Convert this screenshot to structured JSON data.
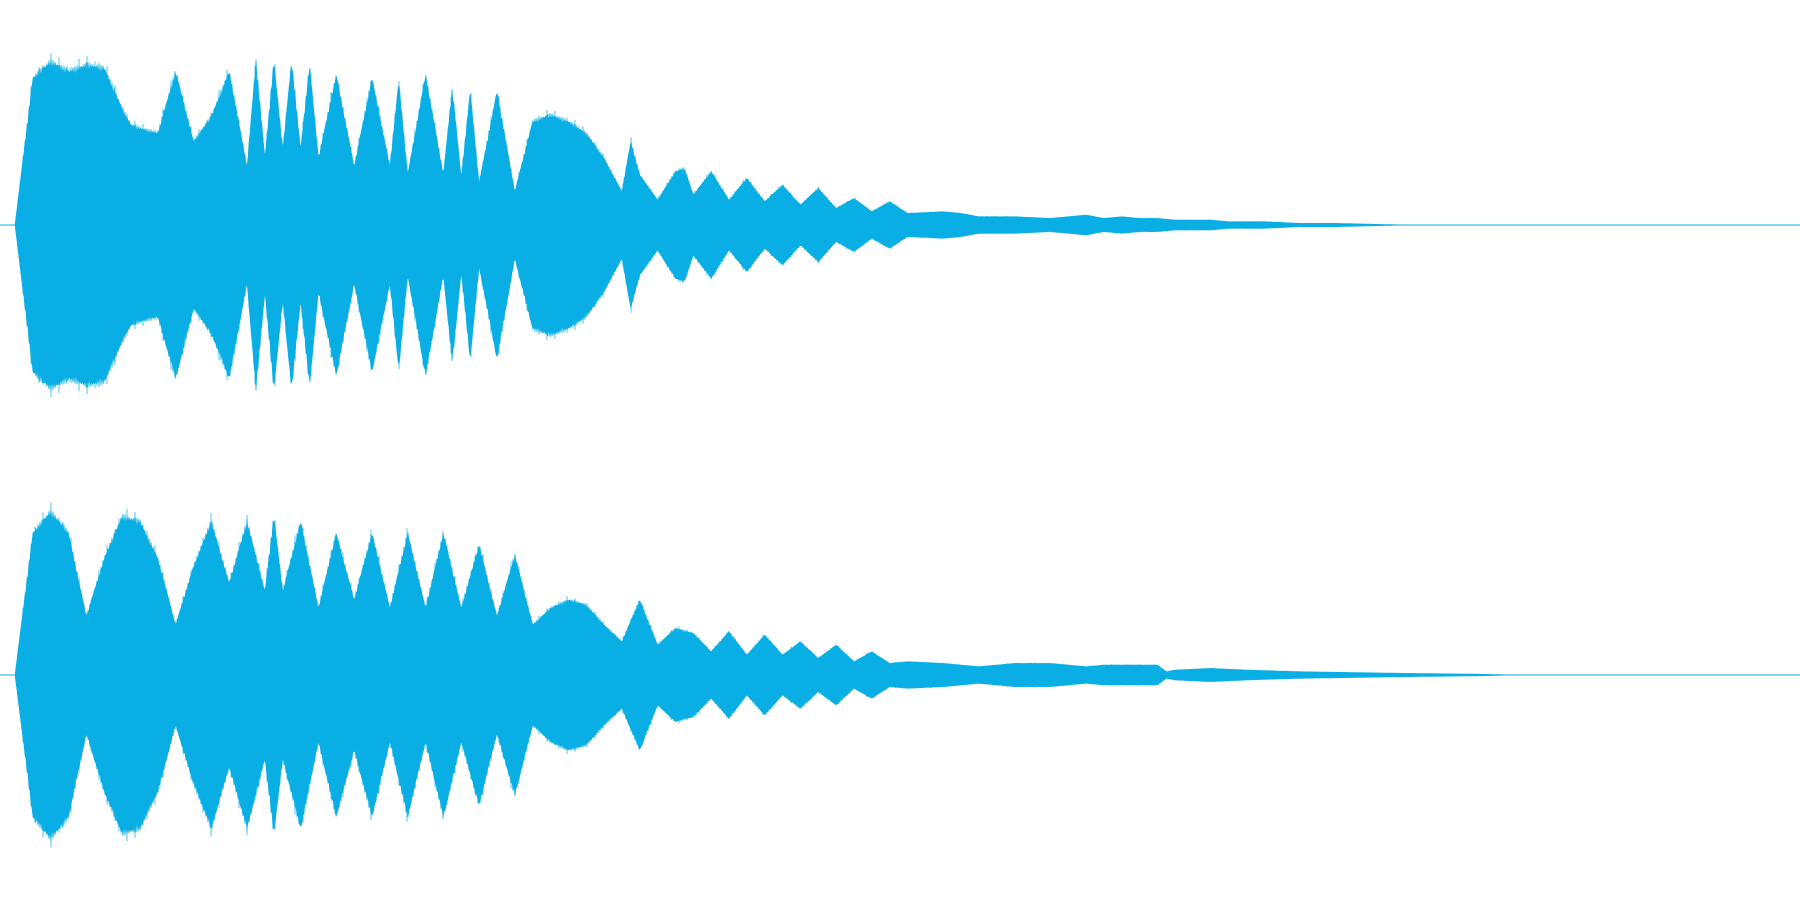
{
  "waveform": {
    "color": "#08aee4",
    "background": "#ffffff",
    "channel_count": 2,
    "channels": [
      {
        "label": "",
        "envelope": [
          [
            0.0,
            0.0
          ],
          [
            0.01,
            0.88
          ],
          [
            0.02,
            0.98
          ],
          [
            0.03,
            0.92
          ],
          [
            0.04,
            0.96
          ],
          [
            0.05,
            0.94
          ],
          [
            0.06,
            0.7
          ],
          [
            0.065,
            0.6
          ],
          [
            0.07,
            0.58
          ],
          [
            0.08,
            0.55
          ],
          [
            0.09,
            0.92
          ],
          [
            0.1,
            0.5
          ],
          [
            0.11,
            0.65
          ],
          [
            0.12,
            0.92
          ],
          [
            0.13,
            0.35
          ],
          [
            0.135,
            0.98
          ],
          [
            0.14,
            0.4
          ],
          [
            0.145,
            0.98
          ],
          [
            0.15,
            0.45
          ],
          [
            0.155,
            0.98
          ],
          [
            0.16,
            0.45
          ],
          [
            0.165,
            0.96
          ],
          [
            0.17,
            0.4
          ],
          [
            0.18,
            0.9
          ],
          [
            0.19,
            0.35
          ],
          [
            0.2,
            0.88
          ],
          [
            0.21,
            0.35
          ],
          [
            0.215,
            0.86
          ],
          [
            0.22,
            0.3
          ],
          [
            0.23,
            0.9
          ],
          [
            0.24,
            0.3
          ],
          [
            0.245,
            0.82
          ],
          [
            0.25,
            0.28
          ],
          [
            0.255,
            0.8
          ],
          [
            0.26,
            0.25
          ],
          [
            0.27,
            0.8
          ],
          [
            0.28,
            0.2
          ],
          [
            0.29,
            0.62
          ],
          [
            0.3,
            0.66
          ],
          [
            0.31,
            0.62
          ],
          [
            0.32,
            0.55
          ],
          [
            0.33,
            0.4
          ],
          [
            0.34,
            0.2
          ],
          [
            0.345,
            0.5
          ],
          [
            0.35,
            0.3
          ],
          [
            0.36,
            0.15
          ],
          [
            0.37,
            0.32
          ],
          [
            0.375,
            0.34
          ],
          [
            0.38,
            0.18
          ],
          [
            0.39,
            0.32
          ],
          [
            0.4,
            0.15
          ],
          [
            0.41,
            0.28
          ],
          [
            0.42,
            0.14
          ],
          [
            0.43,
            0.24
          ],
          [
            0.44,
            0.12
          ],
          [
            0.45,
            0.22
          ],
          [
            0.46,
            0.1
          ],
          [
            0.47,
            0.16
          ],
          [
            0.48,
            0.08
          ],
          [
            0.49,
            0.14
          ],
          [
            0.5,
            0.07
          ],
          [
            0.52,
            0.08
          ],
          [
            0.53,
            0.07
          ],
          [
            0.54,
            0.05
          ],
          [
            0.56,
            0.05
          ],
          [
            0.58,
            0.04
          ],
          [
            0.6,
            0.06
          ],
          [
            0.61,
            0.04
          ],
          [
            0.62,
            0.05
          ],
          [
            0.63,
            0.04
          ],
          [
            0.64,
            0.04
          ],
          [
            0.65,
            0.03
          ],
          [
            0.66,
            0.03
          ],
          [
            0.67,
            0.03
          ],
          [
            0.68,
            0.02
          ],
          [
            0.7,
            0.02
          ],
          [
            0.72,
            0.01
          ],
          [
            0.74,
            0.01
          ],
          [
            0.76,
            0.005
          ],
          [
            0.78,
            0.0
          ],
          [
            1.0,
            0.0
          ]
        ]
      },
      {
        "label": "",
        "envelope": [
          [
            0.0,
            0.0
          ],
          [
            0.01,
            0.85
          ],
          [
            0.02,
            0.98
          ],
          [
            0.03,
            0.85
          ],
          [
            0.04,
            0.35
          ],
          [
            0.05,
            0.7
          ],
          [
            0.06,
            0.95
          ],
          [
            0.07,
            0.92
          ],
          [
            0.08,
            0.7
          ],
          [
            0.09,
            0.3
          ],
          [
            0.1,
            0.65
          ],
          [
            0.11,
            0.92
          ],
          [
            0.12,
            0.55
          ],
          [
            0.13,
            0.92
          ],
          [
            0.14,
            0.5
          ],
          [
            0.145,
            0.95
          ],
          [
            0.15,
            0.5
          ],
          [
            0.16,
            0.92
          ],
          [
            0.17,
            0.4
          ],
          [
            0.18,
            0.85
          ],
          [
            0.19,
            0.45
          ],
          [
            0.2,
            0.85
          ],
          [
            0.21,
            0.4
          ],
          [
            0.22,
            0.85
          ],
          [
            0.23,
            0.4
          ],
          [
            0.24,
            0.85
          ],
          [
            0.25,
            0.4
          ],
          [
            0.26,
            0.78
          ],
          [
            0.27,
            0.35
          ],
          [
            0.28,
            0.72
          ],
          [
            0.29,
            0.3
          ],
          [
            0.3,
            0.4
          ],
          [
            0.31,
            0.45
          ],
          [
            0.32,
            0.42
          ],
          [
            0.33,
            0.3
          ],
          [
            0.34,
            0.2
          ],
          [
            0.35,
            0.45
          ],
          [
            0.36,
            0.18
          ],
          [
            0.37,
            0.28
          ],
          [
            0.38,
            0.25
          ],
          [
            0.39,
            0.14
          ],
          [
            0.4,
            0.26
          ],
          [
            0.41,
            0.12
          ],
          [
            0.42,
            0.24
          ],
          [
            0.43,
            0.12
          ],
          [
            0.44,
            0.2
          ],
          [
            0.45,
            0.1
          ],
          [
            0.46,
            0.18
          ],
          [
            0.47,
            0.08
          ],
          [
            0.48,
            0.14
          ],
          [
            0.49,
            0.07
          ],
          [
            0.5,
            0.08
          ],
          [
            0.52,
            0.07
          ],
          [
            0.53,
            0.06
          ],
          [
            0.54,
            0.05
          ],
          [
            0.55,
            0.06
          ],
          [
            0.56,
            0.07
          ],
          [
            0.58,
            0.07
          ],
          [
            0.59,
            0.06
          ],
          [
            0.6,
            0.05
          ],
          [
            0.61,
            0.06
          ],
          [
            0.62,
            0.06
          ],
          [
            0.63,
            0.06
          ],
          [
            0.64,
            0.06
          ],
          [
            0.645,
            0.02
          ],
          [
            0.65,
            0.03
          ],
          [
            0.67,
            0.04
          ],
          [
            0.69,
            0.03
          ],
          [
            0.72,
            0.02
          ],
          [
            0.75,
            0.015
          ],
          [
            0.78,
            0.01
          ],
          [
            0.82,
            0.005
          ],
          [
            0.84,
            0.0
          ],
          [
            1.0,
            0.0
          ]
        ]
      }
    ]
  }
}
